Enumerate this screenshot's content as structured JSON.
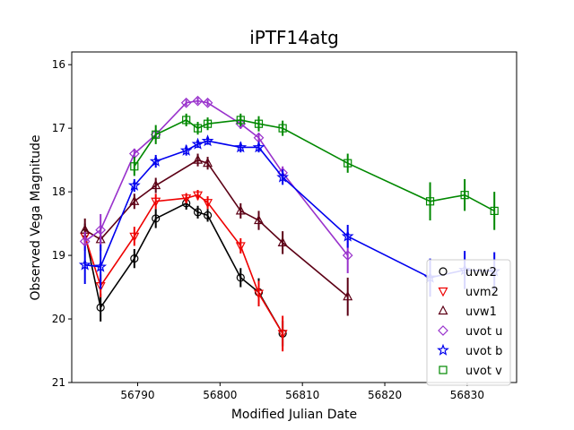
{
  "chart_data": {
    "type": "scatter",
    "title": "iPTF14atg",
    "xlabel": "Modified Julian Date",
    "ylabel": "Observed Vega Magnitude",
    "xlim": [
      56782,
      56836
    ],
    "ylim": [
      21,
      15.8
    ],
    "y_inverted": true,
    "x_ticks": [
      56790,
      56800,
      56810,
      56820,
      56830
    ],
    "y_ticks": [
      16,
      17,
      18,
      19,
      20,
      21
    ],
    "grid": false,
    "legend_position": "lower-right",
    "series": [
      {
        "name": "uvw2",
        "color": "#000000",
        "marker": "circle",
        "x": [
          56783.6,
          56785.5,
          56789.6,
          56792.2,
          56795.9,
          56797.3,
          56798.5,
          56802.5,
          56804.7,
          56807.6
        ],
        "y": [
          18.65,
          19.82,
          19.05,
          18.42,
          18.18,
          18.32,
          18.37,
          19.35,
          19.58,
          20.23
        ],
        "err": [
          0.15,
          0.22,
          0.15,
          0.15,
          0.1,
          0.1,
          0.1,
          0.15,
          0.22,
          0.2
        ]
      },
      {
        "name": "uvm2",
        "color": "#ee0000",
        "marker": "triangle-down",
        "x": [
          56783.6,
          56785.5,
          56789.6,
          56792.2,
          56795.9,
          56797.3,
          56798.5,
          56802.5,
          56804.7,
          56807.6
        ],
        "y": [
          18.7,
          19.48,
          18.7,
          18.15,
          18.1,
          18.05,
          18.17,
          18.85,
          19.6,
          20.23
        ],
        "err": [
          0.15,
          0.18,
          0.15,
          0.12,
          0.08,
          0.08,
          0.1,
          0.12,
          0.2,
          0.28
        ]
      },
      {
        "name": "uvw1",
        "color": "#5c0015",
        "marker": "triangle-up",
        "x": [
          56783.6,
          56785.5,
          56789.6,
          56792.2,
          56797.3,
          56798.5,
          56802.5,
          56804.7,
          56807.6,
          56815.5
        ],
        "y": [
          18.6,
          18.75,
          18.15,
          17.9,
          17.5,
          17.55,
          18.3,
          18.45,
          18.8,
          19.65
        ],
        "err": [
          0.18,
          0.18,
          0.12,
          0.12,
          0.1,
          0.1,
          0.12,
          0.15,
          0.18,
          0.3
        ]
      },
      {
        "name": "uvot u",
        "color": "#9932cc",
        "marker": "diamond",
        "x": [
          56783.6,
          56785.5,
          56789.6,
          56792.2,
          56795.9,
          56797.3,
          56798.5,
          56802.5,
          56804.7,
          56807.6,
          56815.5
        ],
        "y": [
          18.78,
          18.6,
          17.4,
          17.1,
          16.6,
          16.57,
          16.6,
          16.93,
          17.15,
          17.7,
          19.0
        ],
        "err": [
          0.15,
          0.25,
          0.08,
          0.08,
          0.05,
          0.05,
          0.05,
          0.08,
          0.08,
          0.1,
          0.28
        ]
      },
      {
        "name": "uvot b",
        "color": "#0000ee",
        "marker": "star",
        "x": [
          56783.6,
          56785.5,
          56789.6,
          56792.2,
          56795.9,
          56797.3,
          56798.5,
          56802.5,
          56804.7,
          56807.6,
          56815.5,
          56825.5,
          56829.7,
          56833.3
        ],
        "y": [
          19.15,
          19.18,
          17.9,
          17.52,
          17.35,
          17.25,
          17.2,
          17.3,
          17.3,
          17.77,
          18.7,
          19.35,
          19.23,
          19.25
        ],
        "err": [
          0.3,
          0.35,
          0.1,
          0.1,
          0.08,
          0.06,
          0.06,
          0.08,
          0.08,
          0.12,
          0.18,
          0.3,
          0.3,
          0.3
        ]
      },
      {
        "name": "uvot v",
        "color": "#008800",
        "marker": "square",
        "x": [
          56789.6,
          56792.2,
          56795.9,
          56797.3,
          56798.5,
          56802.5,
          56804.7,
          56807.6,
          56815.5,
          56825.5,
          56829.7,
          56833.3
        ],
        "y": [
          17.6,
          17.1,
          16.87,
          17.0,
          16.93,
          16.87,
          16.93,
          17.0,
          17.55,
          18.15,
          18.05,
          18.3
        ],
        "err": [
          0.15,
          0.15,
          0.1,
          0.1,
          0.1,
          0.1,
          0.12,
          0.12,
          0.15,
          0.3,
          0.25,
          0.3
        ]
      }
    ]
  }
}
